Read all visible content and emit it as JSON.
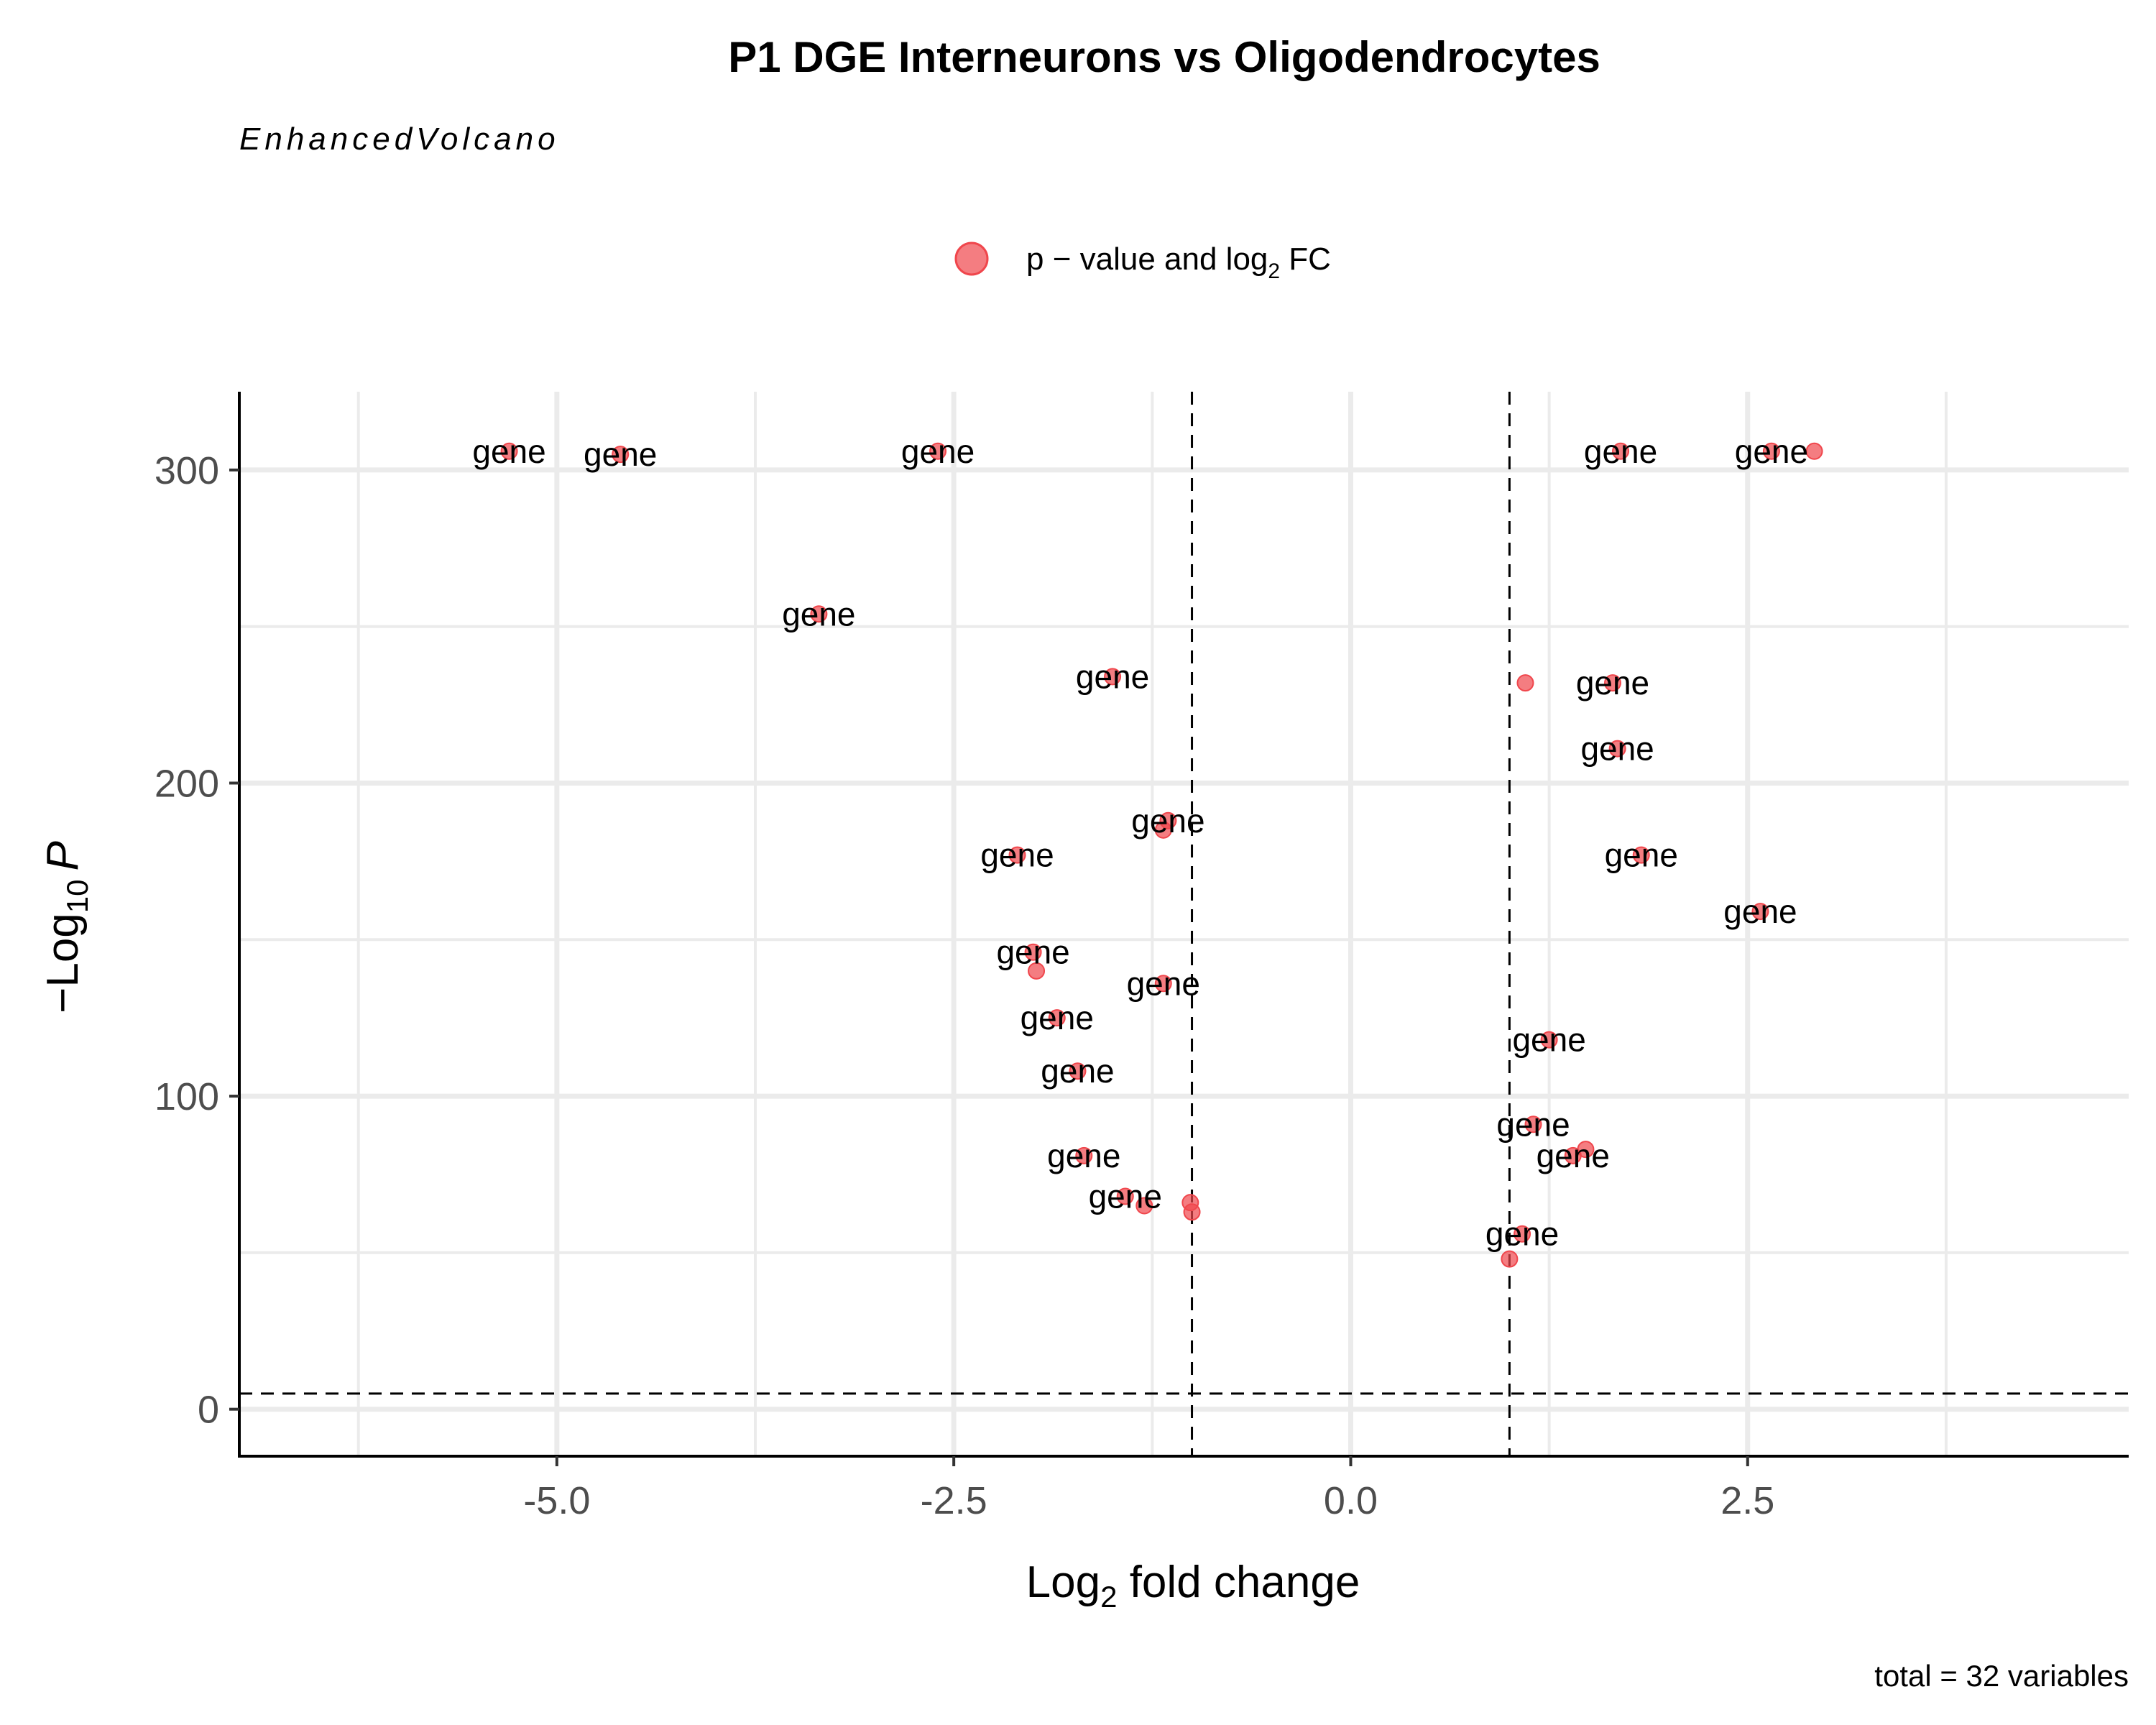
{
  "chart_data": {
    "type": "scatter",
    "title": "P1 DGE Interneurons vs Oligodendrocytes",
    "subtitle": "EnhancedVolcano",
    "caption": "total = 32 variables",
    "xlabel": {
      "base": "Log",
      "sub": "2",
      "rest": " fold change"
    },
    "ylabel": {
      "prefix": "−Log",
      "sub": "10",
      "italic": "P"
    },
    "xlim": [
      -7.0,
      4.9
    ],
    "ylim": [
      -15,
      325
    ],
    "x_ticks": [
      -5.0,
      -2.5,
      0.0,
      2.5
    ],
    "x_tick_labels": [
      "-5.0",
      "-2.5",
      "0.0",
      "2.5"
    ],
    "y_ticks": [
      0,
      100,
      200,
      300
    ],
    "y_tick_labels": [
      "0",
      "100",
      "200",
      "300"
    ],
    "grid": true,
    "fc_cutoff": 1.0,
    "p_cutoff_log10": 5,
    "legend": {
      "position": "top",
      "label_pre": "p − value and log",
      "label_sub": "2",
      "label_post": " FC",
      "color": "#f0464c"
    },
    "point_color": "#f0464c",
    "label_text": "gene",
    "points": [
      {
        "x": -5.3,
        "y": 306,
        "label": true
      },
      {
        "x": -4.6,
        "y": 305,
        "label": true
      },
      {
        "x": -2.6,
        "y": 306,
        "label": true
      },
      {
        "x": -3.35,
        "y": 254,
        "label": true
      },
      {
        "x": -1.5,
        "y": 234,
        "label": true
      },
      {
        "x": -1.15,
        "y": 188,
        "label": true
      },
      {
        "x": -1.18,
        "y": 185,
        "label": false
      },
      {
        "x": -2.1,
        "y": 177,
        "label": true
      },
      {
        "x": -2.0,
        "y": 146,
        "label": true
      },
      {
        "x": -1.98,
        "y": 140,
        "label": false
      },
      {
        "x": -1.18,
        "y": 136,
        "label": true
      },
      {
        "x": -1.85,
        "y": 125,
        "label": true
      },
      {
        "x": -1.72,
        "y": 108,
        "label": true
      },
      {
        "x": -1.68,
        "y": 81,
        "label": true
      },
      {
        "x": -1.42,
        "y": 68,
        "label": true
      },
      {
        "x": -1.3,
        "y": 65,
        "label": false
      },
      {
        "x": -1.01,
        "y": 66,
        "label": false
      },
      {
        "x": -1.0,
        "y": 63,
        "label": false
      },
      {
        "x": 1.7,
        "y": 306,
        "label": true
      },
      {
        "x": 2.65,
        "y": 306,
        "label": true
      },
      {
        "x": 2.92,
        "y": 306,
        "label": false
      },
      {
        "x": 1.1,
        "y": 232,
        "label": false
      },
      {
        "x": 1.65,
        "y": 232,
        "label": true
      },
      {
        "x": 1.68,
        "y": 211,
        "label": true
      },
      {
        "x": 1.83,
        "y": 177,
        "label": true
      },
      {
        "x": 2.58,
        "y": 159,
        "label": true
      },
      {
        "x": 1.25,
        "y": 118,
        "label": true
      },
      {
        "x": 1.15,
        "y": 91,
        "label": true
      },
      {
        "x": 1.48,
        "y": 83,
        "label": false
      },
      {
        "x": 1.4,
        "y": 81,
        "label": true
      },
      {
        "x": 1.08,
        "y": 56,
        "label": true
      },
      {
        "x": 1.0,
        "y": 48,
        "label": false
      }
    ]
  }
}
